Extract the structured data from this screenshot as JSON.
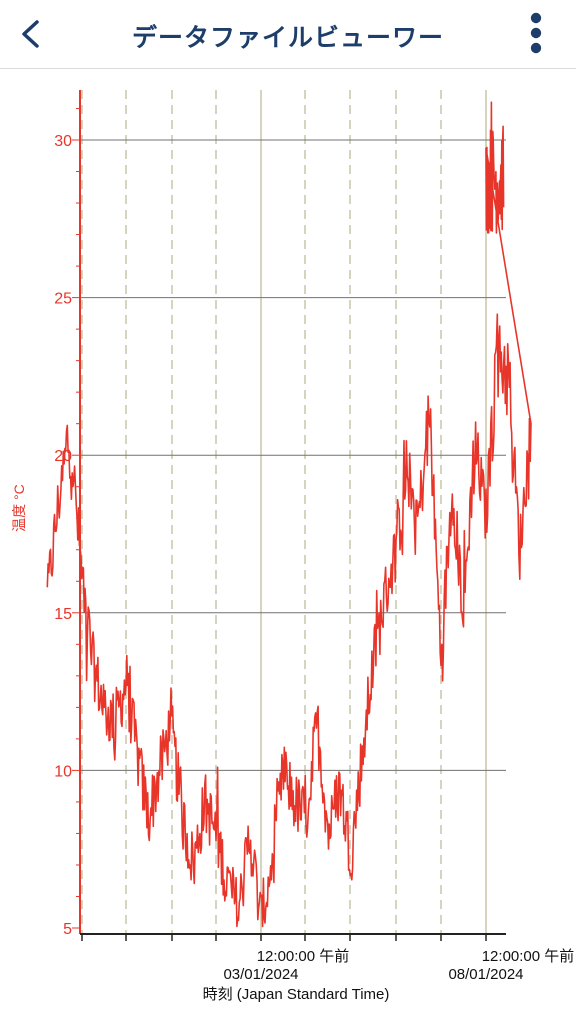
{
  "app_bar": {
    "title": "データファイルビューワー",
    "back_icon": "chevron-left-icon",
    "menu_icon": "more-vertical-icon",
    "color": "#1d3e6b"
  },
  "chart_data": {
    "type": "line",
    "title": "",
    "ylabel": "温度 °C",
    "xlabel": "時刻 (Japan Standard Time)",
    "ylim": [
      5,
      31.5
    ],
    "yticks": [
      5,
      10,
      15,
      20,
      25,
      30
    ],
    "grid": true,
    "x_tick_labels": [
      {
        "time": "12:00:00 午前",
        "date": "03/01/2024"
      },
      {
        "time": "12:00:00 午前",
        "date": "08/01/2024"
      }
    ],
    "series": [
      {
        "color": "#e8352a",
        "x": [
          "2023-12-29 06:00",
          "2023-12-29 12:00",
          "2023-12-29 18:00",
          "2023-12-30 00:00",
          "2023-12-30 06:00",
          "2023-12-30 12:00",
          "2023-12-30 18:00",
          "2023-12-31 00:00",
          "2023-12-31 06:00",
          "2023-12-31 12:00",
          "2023-12-31 18:00",
          "2024-01-01 00:00",
          "2024-01-01 06:00",
          "2024-01-01 12:00",
          "2024-01-01 18:00",
          "2024-01-02 00:00",
          "2024-01-02 06:00",
          "2024-01-02 12:00",
          "2024-01-02 18:00",
          "2024-01-03 00:00",
          "2024-01-03 06:00",
          "2024-01-03 12:00",
          "2024-01-03 18:00",
          "2024-01-04 00:00",
          "2024-01-04 06:00",
          "2024-01-04 12:00",
          "2024-01-04 18:00",
          "2024-01-05 00:00",
          "2024-01-05 06:00",
          "2024-01-05 12:00",
          "2024-01-05 18:00",
          "2024-01-06 00:00",
          "2024-01-06 06:00",
          "2024-01-06 12:00",
          "2024-01-06 18:00",
          "2024-01-07 00:00",
          "2024-01-07 06:00",
          "2024-01-07 12:00",
          "2024-01-07 18:00",
          "2024-01-08 00:00",
          "2024-01-08 06:00",
          "2024-01-08 12:00",
          "2024-01-08 18:00",
          "2024-01-09 00:00"
        ],
        "values": [
          15.5,
          18.5,
          20.8,
          16.5,
          13.5,
          12.0,
          11.5,
          12.8,
          10.5,
          8.5,
          10.0,
          11.5,
          8.5,
          7.0,
          9.0,
          8.0,
          6.5,
          5.5,
          8.0,
          5.2,
          7.0,
          10.0,
          9.0,
          8.5,
          11.5,
          8.0,
          9.5,
          7.3,
          10.5,
          13.5,
          15.5,
          17.0,
          19.5,
          18.0,
          21.2,
          13.6,
          19.0,
          15.0,
          20.5,
          18.0,
          23.5,
          22.5,
          17.0,
          21.0
        ]
      }
    ]
  }
}
